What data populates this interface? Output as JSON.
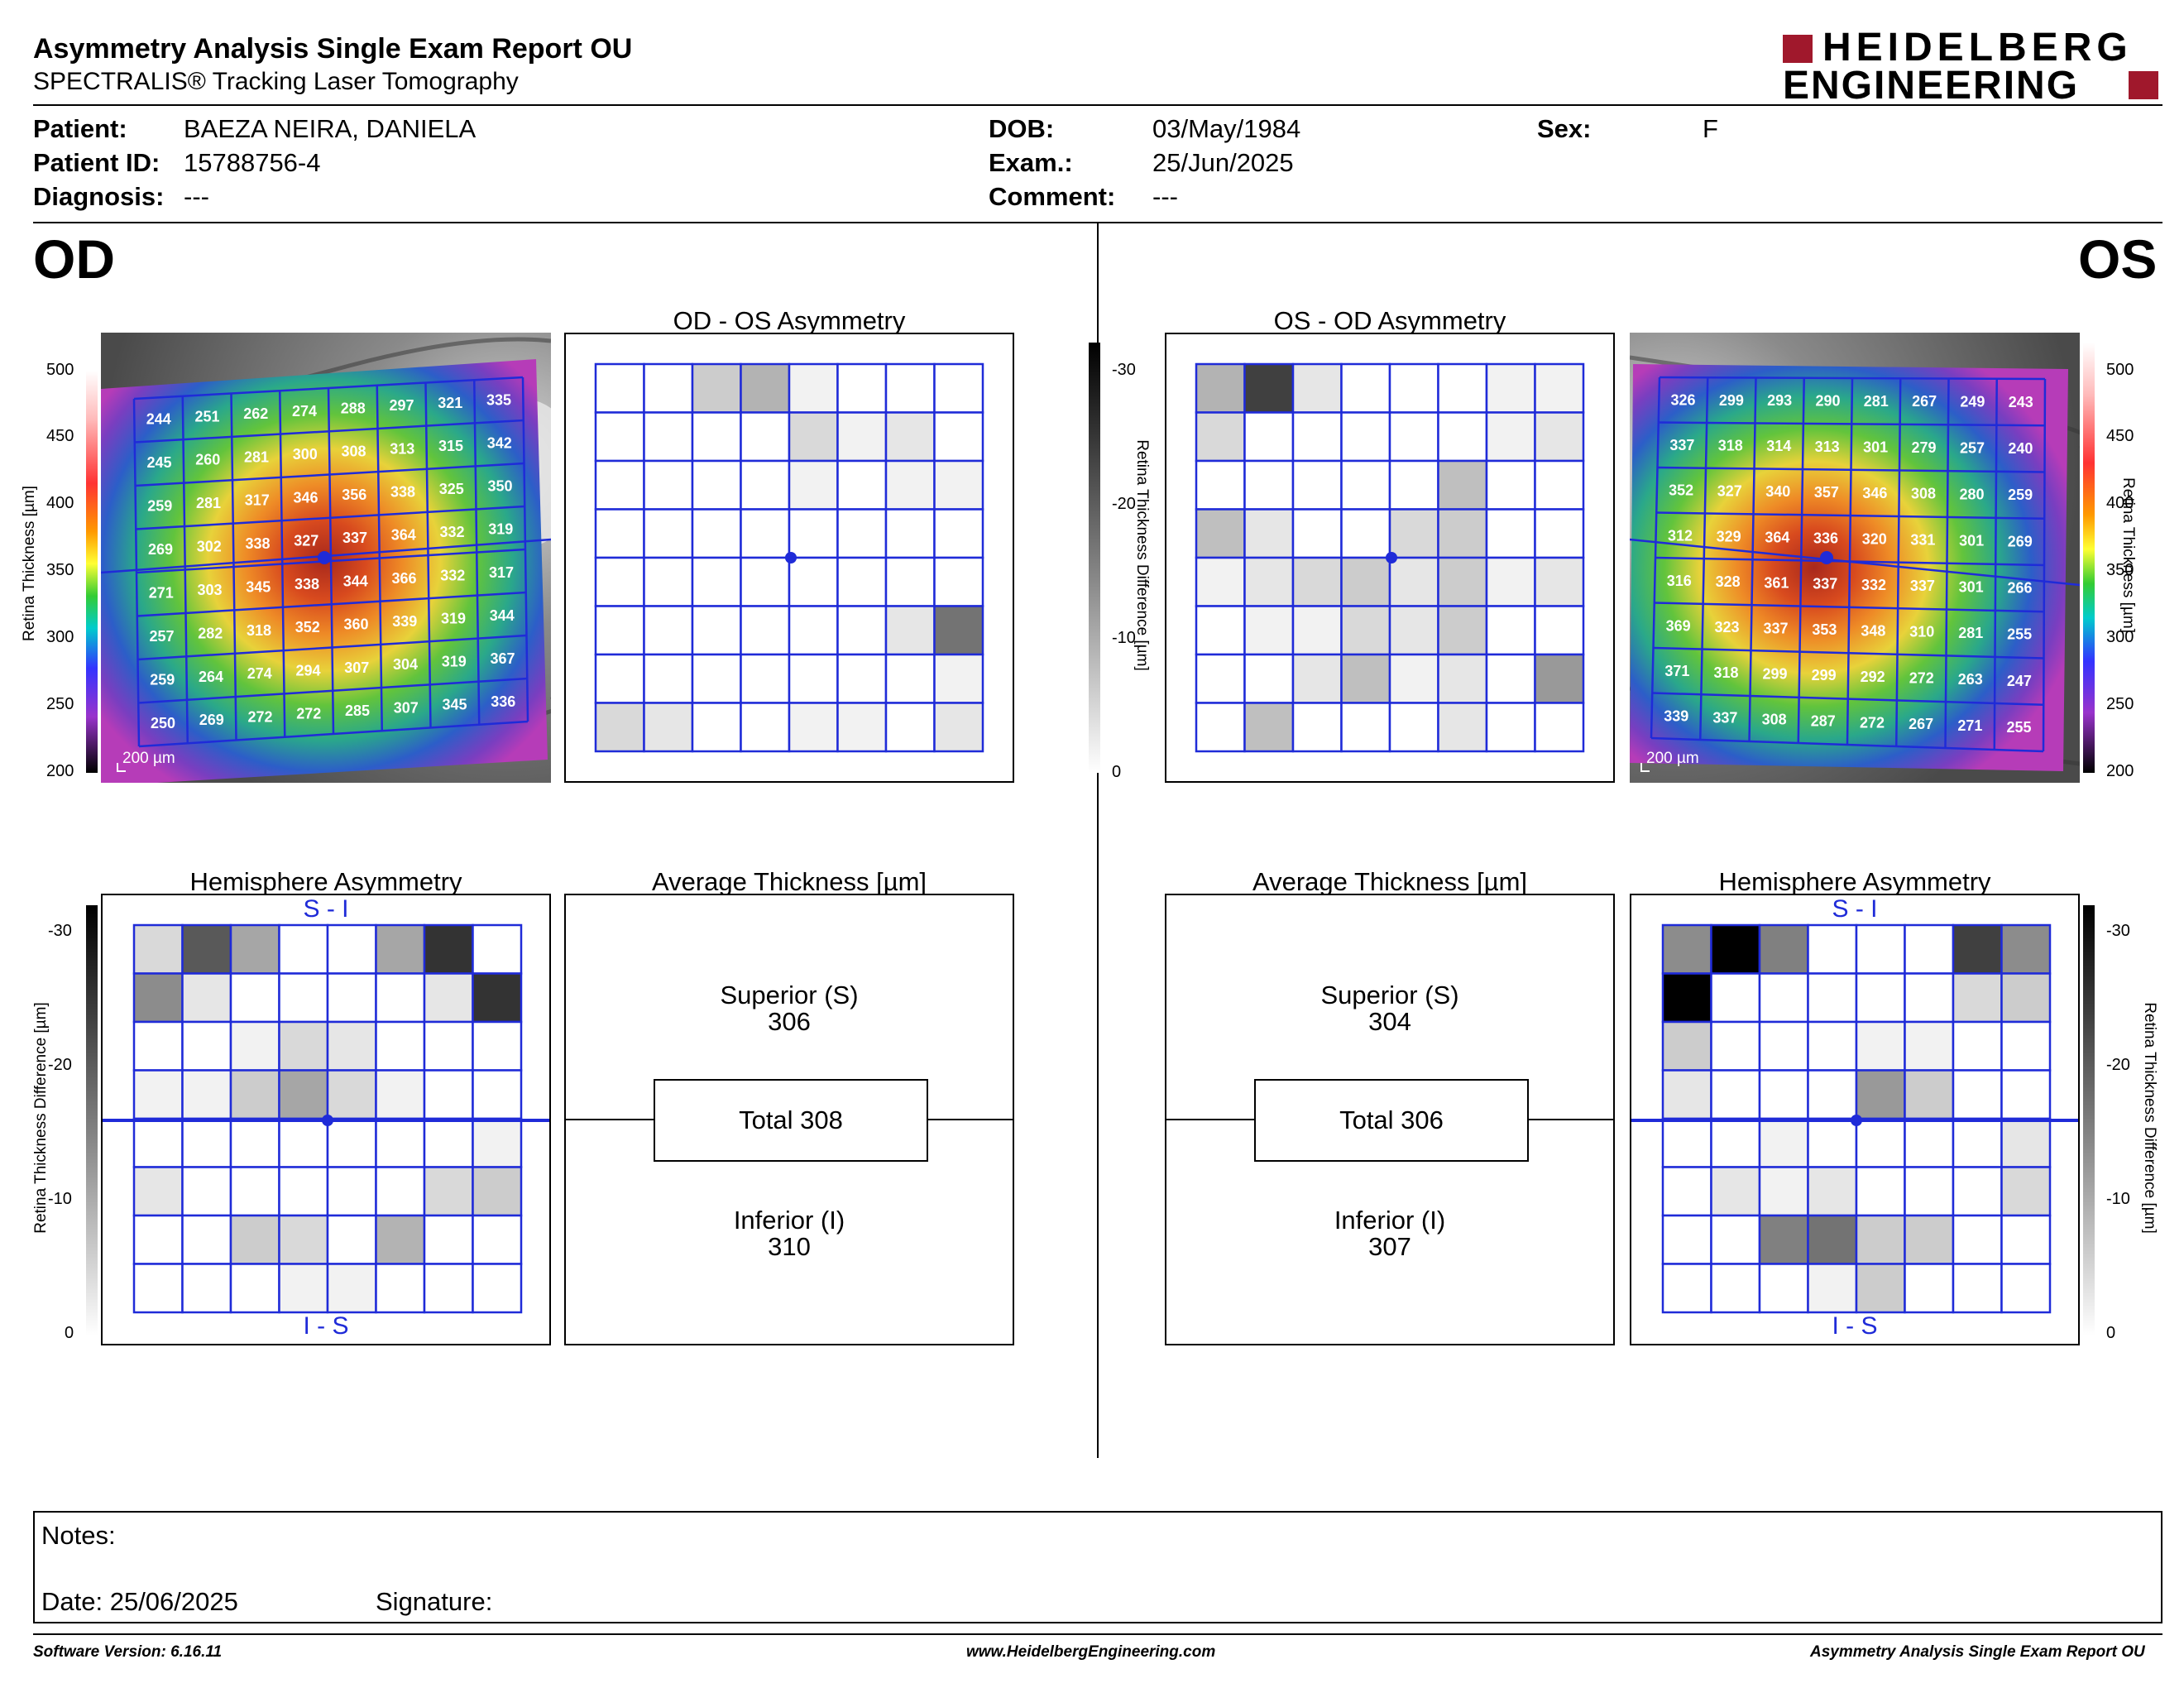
{
  "header": {
    "title": "Asymmetry Analysis Single Exam Report OU",
    "subtitle": "SPECTRALIS® Tracking Laser Tomography",
    "logo_line1": "HEIDELBERG",
    "logo_line2": "ENGINEERING"
  },
  "patient": {
    "patient_label": "Patient:",
    "patient_value": "BAEZA NEIRA, DANIELA",
    "id_label": "Patient ID:",
    "id_value": "15788756-4",
    "diagnosis_label": "Diagnosis:",
    "diagnosis_value": "---",
    "dob_label": "DOB:",
    "dob_value": "03/May/1984",
    "exam_label": "Exam.:",
    "exam_value": "25/Jun/2025",
    "comment_label": "Comment:",
    "comment_value": "---",
    "sex_label": "Sex:",
    "sex_value": "F"
  },
  "od": {
    "eye_label": "OD",
    "asym_title": "OD - OS Asymmetry",
    "hemi_title": "Hemisphere Asymmetry",
    "hemi_top": "S - I",
    "hemi_bottom": "I - S",
    "avg_title": "Average Thickness [µm]",
    "superior_label": "Superior (S)",
    "superior_value": "306",
    "total_label": "Total 308",
    "inferior_label": "Inferior (I)",
    "inferior_value": "310",
    "scale_label": "200 µm",
    "thickness": [
      [
        244,
        251,
        262,
        274,
        288,
        297,
        321,
        335
      ],
      [
        245,
        260,
        281,
        300,
        308,
        313,
        315,
        342
      ],
      [
        259,
        281,
        317,
        346,
        356,
        338,
        325,
        350
      ],
      [
        269,
        302,
        338,
        327,
        337,
        364,
        332,
        319
      ],
      [
        271,
        303,
        345,
        338,
        344,
        366,
        332,
        317
      ],
      [
        257,
        282,
        318,
        352,
        360,
        339,
        319,
        344
      ],
      [
        259,
        264,
        274,
        294,
        307,
        304,
        319,
        367
      ],
      [
        250,
        269,
        272,
        272,
        285,
        307,
        345,
        336
      ]
    ],
    "asym_gray": [
      [
        0,
        0,
        0.2,
        0.3,
        0.05,
        0,
        0,
        0
      ],
      [
        0,
        0,
        0,
        0,
        0.15,
        0.05,
        0.1,
        0
      ],
      [
        0,
        0,
        0,
        0,
        0.05,
        0,
        0.05,
        0.05
      ],
      [
        0,
        0,
        0,
        0,
        0,
        0,
        0,
        0
      ],
      [
        0,
        0,
        0,
        0,
        0,
        0,
        0,
        0
      ],
      [
        0,
        0,
        0,
        0,
        0,
        0,
        0.1,
        0.55
      ],
      [
        0,
        0,
        0,
        0,
        0,
        0,
        0,
        0.05
      ],
      [
        0.15,
        0.1,
        0,
        0,
        0.05,
        0.05,
        0,
        0.1
      ]
    ],
    "hemi_gray": [
      [
        0.15,
        0.65,
        0.35,
        0,
        0,
        0.35,
        0.8,
        0
      ],
      [
        0.45,
        0.1,
        0,
        0,
        0,
        0,
        0.1,
        0.8
      ],
      [
        0,
        0,
        0.05,
        0.15,
        0.1,
        0,
        0,
        0
      ],
      [
        0.05,
        0.05,
        0.2,
        0.35,
        0.15,
        0.05,
        0,
        0
      ],
      [
        0,
        0,
        0,
        0,
        0,
        0,
        0,
        0.05
      ],
      [
        0.1,
        0,
        0,
        0,
        0,
        0,
        0.15,
        0.2
      ],
      [
        0,
        0,
        0.2,
        0.15,
        0,
        0.3,
        0,
        0
      ],
      [
        0,
        0,
        0,
        0.05,
        0.05,
        0,
        0,
        0
      ]
    ]
  },
  "os": {
    "eye_label": "OS",
    "asym_title": "OS - OD Asymmetry",
    "hemi_title": "Hemisphere Asymmetry",
    "hemi_top": "S - I",
    "hemi_bottom": "I - S",
    "avg_title": "Average Thickness [µm]",
    "superior_label": "Superior (S)",
    "superior_value": "304",
    "total_label": "Total 306",
    "inferior_label": "Inferior (I)",
    "inferior_value": "307",
    "scale_label": "200 µm",
    "thickness": [
      [
        326,
        299,
        293,
        290,
        281,
        267,
        249,
        243
      ],
      [
        337,
        318,
        314,
        313,
        301,
        279,
        257,
        240
      ],
      [
        352,
        327,
        340,
        357,
        346,
        308,
        280,
        259
      ],
      [
        312,
        329,
        364,
        336,
        320,
        331,
        301,
        269
      ],
      [
        316,
        328,
        361,
        337,
        332,
        337,
        301,
        266
      ],
      [
        369,
        323,
        337,
        353,
        348,
        310,
        281,
        255
      ],
      [
        371,
        318,
        299,
        299,
        292,
        272,
        263,
        247
      ],
      [
        339,
        337,
        308,
        287,
        272,
        267,
        271,
        255
      ]
    ],
    "asym_gray": [
      [
        0.3,
        0.75,
        0.1,
        0,
        0,
        0,
        0.05,
        0.05
      ],
      [
        0.15,
        0,
        0,
        0,
        0,
        0,
        0.05,
        0.1
      ],
      [
        0,
        0,
        0,
        0,
        0,
        0.25,
        0,
        0
      ],
      [
        0.25,
        0.1,
        0,
        0,
        0.15,
        0.2,
        0,
        0
      ],
      [
        0.05,
        0.1,
        0.15,
        0.2,
        0.1,
        0.2,
        0.05,
        0.1
      ],
      [
        0,
        0.05,
        0.05,
        0.15,
        0.1,
        0.2,
        0,
        0
      ],
      [
        0,
        0,
        0.1,
        0.25,
        0.05,
        0.1,
        0,
        0.4
      ],
      [
        0,
        0.25,
        0,
        0,
        0,
        0.1,
        0,
        0
      ]
    ],
    "hemi_gray": [
      [
        0.45,
        1.0,
        0.5,
        0,
        0,
        0,
        0.75,
        0.45
      ],
      [
        1.0,
        0,
        0,
        0,
        0,
        0,
        0.15,
        0.2
      ],
      [
        0.2,
        0,
        0,
        0,
        0.05,
        0.05,
        0,
        0
      ],
      [
        0.1,
        0,
        0,
        0,
        0.4,
        0.2,
        0,
        0
      ],
      [
        0,
        0,
        0.05,
        0,
        0,
        0,
        0,
        0.1
      ],
      [
        0,
        0.1,
        0.05,
        0.1,
        0,
        0,
        0,
        0.15
      ],
      [
        0,
        0,
        0.5,
        0.55,
        0.2,
        0.2,
        0,
        0
      ],
      [
        0,
        0,
        0,
        0.05,
        0.2,
        0,
        0,
        0
      ]
    ]
  },
  "colorbar": {
    "thickness_label": "Retina Thickness [µm]",
    "thickness_ticks": [
      "500",
      "450",
      "400",
      "350",
      "300",
      "250",
      "200"
    ],
    "diff_label": "Retina Thickness Difference [µm]",
    "diff_ticks": [
      "-30",
      "-20",
      "-10",
      "0"
    ]
  },
  "notes": {
    "notes_label": "Notes:",
    "date_label": "Date: 25/06/2025",
    "signature_label": "Signature:"
  },
  "footer": {
    "left": "Software Version: 6.16.11",
    "center": "www.HeidelbergEngineering.com",
    "right": "Asymmetry Analysis Single Exam Report OU"
  },
  "colors": {
    "grid_blue": "#1f2bd8",
    "logo_red": "#a0182c"
  }
}
